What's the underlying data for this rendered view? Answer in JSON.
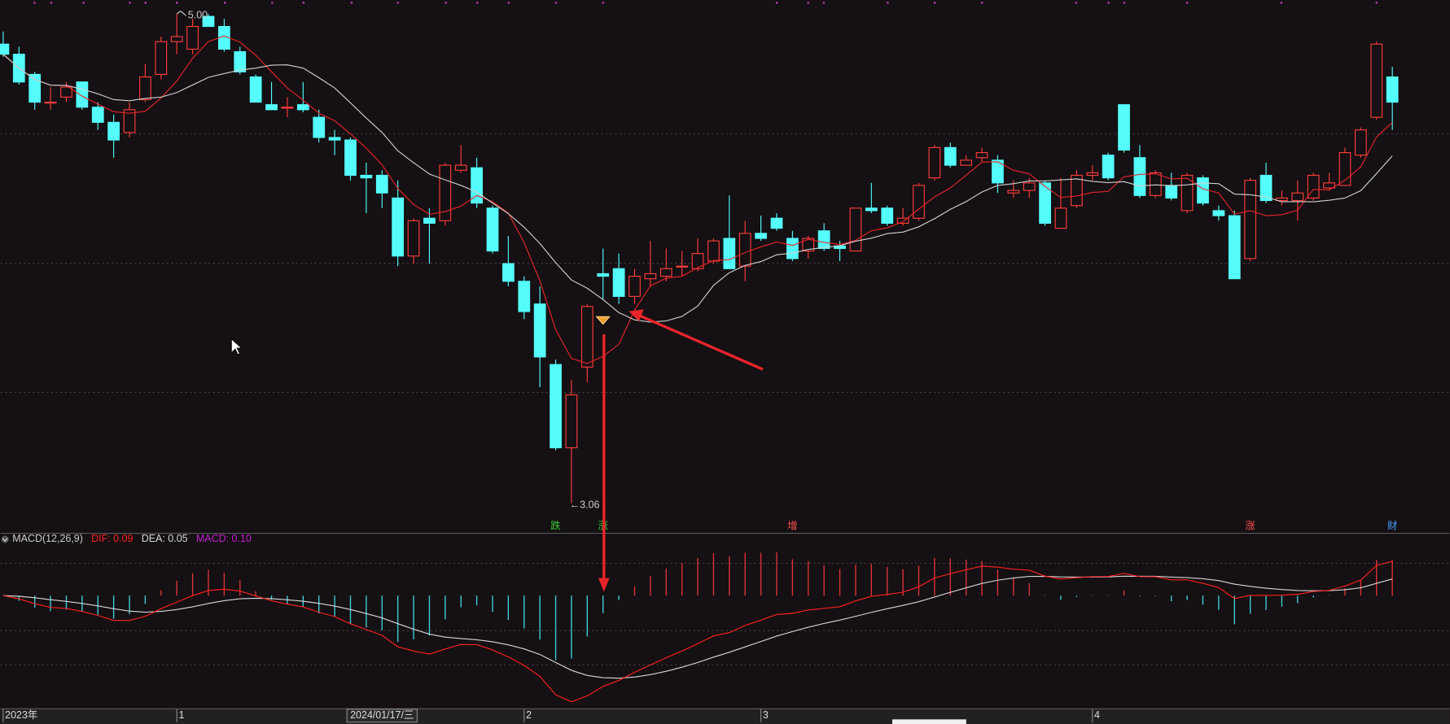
{
  "chart_data": {
    "type": "candlestick",
    "categories": [
      "2023年",
      null,
      null,
      null,
      null,
      null,
      null,
      null,
      null,
      null,
      null,
      "1",
      null,
      null,
      null,
      null,
      null,
      null,
      null,
      null,
      null,
      null,
      null,
      null,
      "2024/01/17/三",
      null,
      null,
      null,
      null,
      null,
      null,
      null,
      null,
      "2",
      null,
      null,
      null,
      null,
      null,
      null,
      null,
      null,
      null,
      null,
      null,
      null,
      null,
      null,
      "3",
      null,
      null,
      null,
      null,
      null,
      null,
      null,
      null,
      null,
      null,
      null,
      null,
      null,
      null,
      null,
      null,
      null,
      null,
      null,
      null,
      "4",
      null,
      null,
      null,
      null,
      null,
      null,
      null,
      null,
      null,
      null,
      null,
      null,
      null,
      null,
      null,
      null,
      null,
      null,
      null
    ],
    "open": [
      4.88,
      4.84,
      4.76,
      4.65,
      4.67,
      4.73,
      4.63,
      4.57,
      4.53,
      4.66,
      4.76,
      4.89,
      4.86,
      4.99,
      4.95,
      4.85,
      4.75,
      4.64,
      4.63,
      4.64,
      4.59,
      4.51,
      4.5,
      4.36,
      4.36,
      4.27,
      4.04,
      4.19,
      4.18,
      4.38,
      4.39,
      4.23,
      4.01,
      3.94,
      3.85,
      3.61,
      3.28,
      3.6,
      3.97,
      3.99,
      3.88,
      3.95,
      3.96,
      4.0,
      3.99,
      4.02,
      4.11,
      4.0,
      4.13,
      4.19,
      4.11,
      4.06,
      4.14,
      4.08,
      4.06,
      4.23,
      4.23,
      4.17,
      4.19,
      4.35,
      4.47,
      4.4,
      4.43,
      4.42,
      4.29,
      4.3,
      4.33,
      4.15,
      4.24,
      4.36,
      4.44,
      4.64,
      4.43,
      4.28,
      4.32,
      4.22,
      4.35,
      4.22,
      4.2,
      4.03,
      4.36,
      4.26,
      4.26,
      4.27,
      4.31,
      4.32,
      4.44,
      4.59,
      4.75
    ],
    "high": [
      4.93,
      4.87,
      4.77,
      4.71,
      4.73,
      4.73,
      4.65,
      4.6,
      4.65,
      4.8,
      4.91,
      5.0,
      4.98,
      5.0,
      4.98,
      4.87,
      4.76,
      4.73,
      4.67,
      4.73,
      4.62,
      4.54,
      4.51,
      4.41,
      4.38,
      4.34,
      4.19,
      4.23,
      4.41,
      4.48,
      4.43,
      4.24,
      4.12,
      3.96,
      3.92,
      3.63,
      3.55,
      3.85,
      4.07,
      4.05,
      3.99,
      4.1,
      4.07,
      4.06,
      4.11,
      4.11,
      4.28,
      4.18,
      4.2,
      4.21,
      4.14,
      4.12,
      4.17,
      4.1,
      4.23,
      4.33,
      4.24,
      4.23,
      4.33,
      4.48,
      4.49,
      4.44,
      4.47,
      4.44,
      4.34,
      4.35,
      4.34,
      4.35,
      4.38,
      4.4,
      4.45,
      4.64,
      4.48,
      4.38,
      4.37,
      4.37,
      4.36,
      4.24,
      4.22,
      4.35,
      4.41,
      4.3,
      4.34,
      4.37,
      4.37,
      4.47,
      4.55,
      4.89,
      4.79
    ],
    "low": [
      4.83,
      4.72,
      4.62,
      4.62,
      4.65,
      4.62,
      4.54,
      4.43,
      4.51,
      4.65,
      4.74,
      4.84,
      4.84,
      4.95,
      4.85,
      4.76,
      4.65,
      4.62,
      4.59,
      4.61,
      4.49,
      4.44,
      4.34,
      4.21,
      4.23,
      4.0,
      4.01,
      4.01,
      4.16,
      4.37,
      4.23,
      4.05,
      3.92,
      3.79,
      3.52,
      3.27,
      3.06,
      3.54,
      3.87,
      3.85,
      3.85,
      3.92,
      3.94,
      3.96,
      3.98,
      4.01,
      3.99,
      3.94,
      4.1,
      4.14,
      4.02,
      4.03,
      4.06,
      4.02,
      4.06,
      4.21,
      4.16,
      4.16,
      4.18,
      4.34,
      4.39,
      4.4,
      4.41,
      4.29,
      4.27,
      4.27,
      4.16,
      4.15,
      4.23,
      4.34,
      4.34,
      4.45,
      4.27,
      4.27,
      4.26,
      4.21,
      4.24,
      4.18,
      3.95,
      4.02,
      4.25,
      4.24,
      4.18,
      4.26,
      4.3,
      4.32,
      4.43,
      4.58,
      4.54
    ],
    "close": [
      4.84,
      4.73,
      4.65,
      4.65,
      4.71,
      4.63,
      4.57,
      4.5,
      4.62,
      4.75,
      4.89,
      4.91,
      4.95,
      4.95,
      4.86,
      4.77,
      4.65,
      4.62,
      4.63,
      4.62,
      4.51,
      4.5,
      4.36,
      4.35,
      4.29,
      4.04,
      4.18,
      4.17,
      4.4,
      4.4,
      4.25,
      4.06,
      3.94,
      3.82,
      3.64,
      3.28,
      3.49,
      3.84,
      3.96,
      3.88,
      3.96,
      3.97,
      3.99,
      4.0,
      4.05,
      4.1,
      3.99,
      4.13,
      4.11,
      4.15,
      4.03,
      4.11,
      4.07,
      4.07,
      4.23,
      4.22,
      4.17,
      4.19,
      4.32,
      4.47,
      4.4,
      4.42,
      4.45,
      4.33,
      4.3,
      4.33,
      4.17,
      4.23,
      4.36,
      4.37,
      4.35,
      4.46,
      4.28,
      4.37,
      4.27,
      4.36,
      4.25,
      4.2,
      3.95,
      4.34,
      4.26,
      4.27,
      4.29,
      4.36,
      4.33,
      4.45,
      4.54,
      4.88,
      4.65
    ],
    "up_color": "#ff3c3c",
    "down_color": "#54fcfc",
    "ma": [
      {
        "period": 5,
        "color": "#e8242b"
      },
      {
        "period": 10,
        "color": "#d0d0d0"
      }
    ],
    "high_label": "5.00",
    "low_label": "←3.06",
    "events": [
      null,
      null,
      null,
      null,
      null,
      null,
      null,
      null,
      null,
      null,
      null,
      null,
      null,
      null,
      null,
      null,
      null,
      null,
      null,
      null,
      null,
      null,
      null,
      null,
      null,
      null,
      null,
      null,
      null,
      null,
      null,
      null,
      null,
      null,
      null,
      {
        "label": "跌",
        "color": "#3cc83c"
      },
      null,
      null,
      {
        "label": "涨",
        "color": "#3cc83c"
      },
      null,
      null,
      null,
      null,
      null,
      null,
      null,
      null,
      null,
      null,
      null,
      {
        "label": "增",
        "color": "#ff5050"
      },
      null,
      null,
      null,
      null,
      null,
      null,
      null,
      null,
      null,
      null,
      null,
      null,
      null,
      null,
      null,
      null,
      null,
      null,
      null,
      null,
      null,
      null,
      null,
      null,
      null,
      null,
      null,
      null,
      {
        "label": "涨",
        "color": "#ff5050"
      },
      null,
      null,
      null,
      null,
      null,
      null,
      null,
      null,
      {
        "label": "财",
        "color": "#4aa0ff"
      }
    ],
    "macd": {
      "title": "MACD(12,26,9)",
      "fast": 12,
      "slow": 26,
      "signal": 9,
      "dif_label": "DIF: 0.09",
      "dea_label": "DEA: 0.05",
      "macd_label": "MACD: 0.10",
      "dif_color": "#ff2020",
      "dea_color": "#d8d8d8",
      "macd_color": "#c81ed2",
      "up_color": "#e0323a",
      "down_color": "#40d0d8"
    }
  }
}
